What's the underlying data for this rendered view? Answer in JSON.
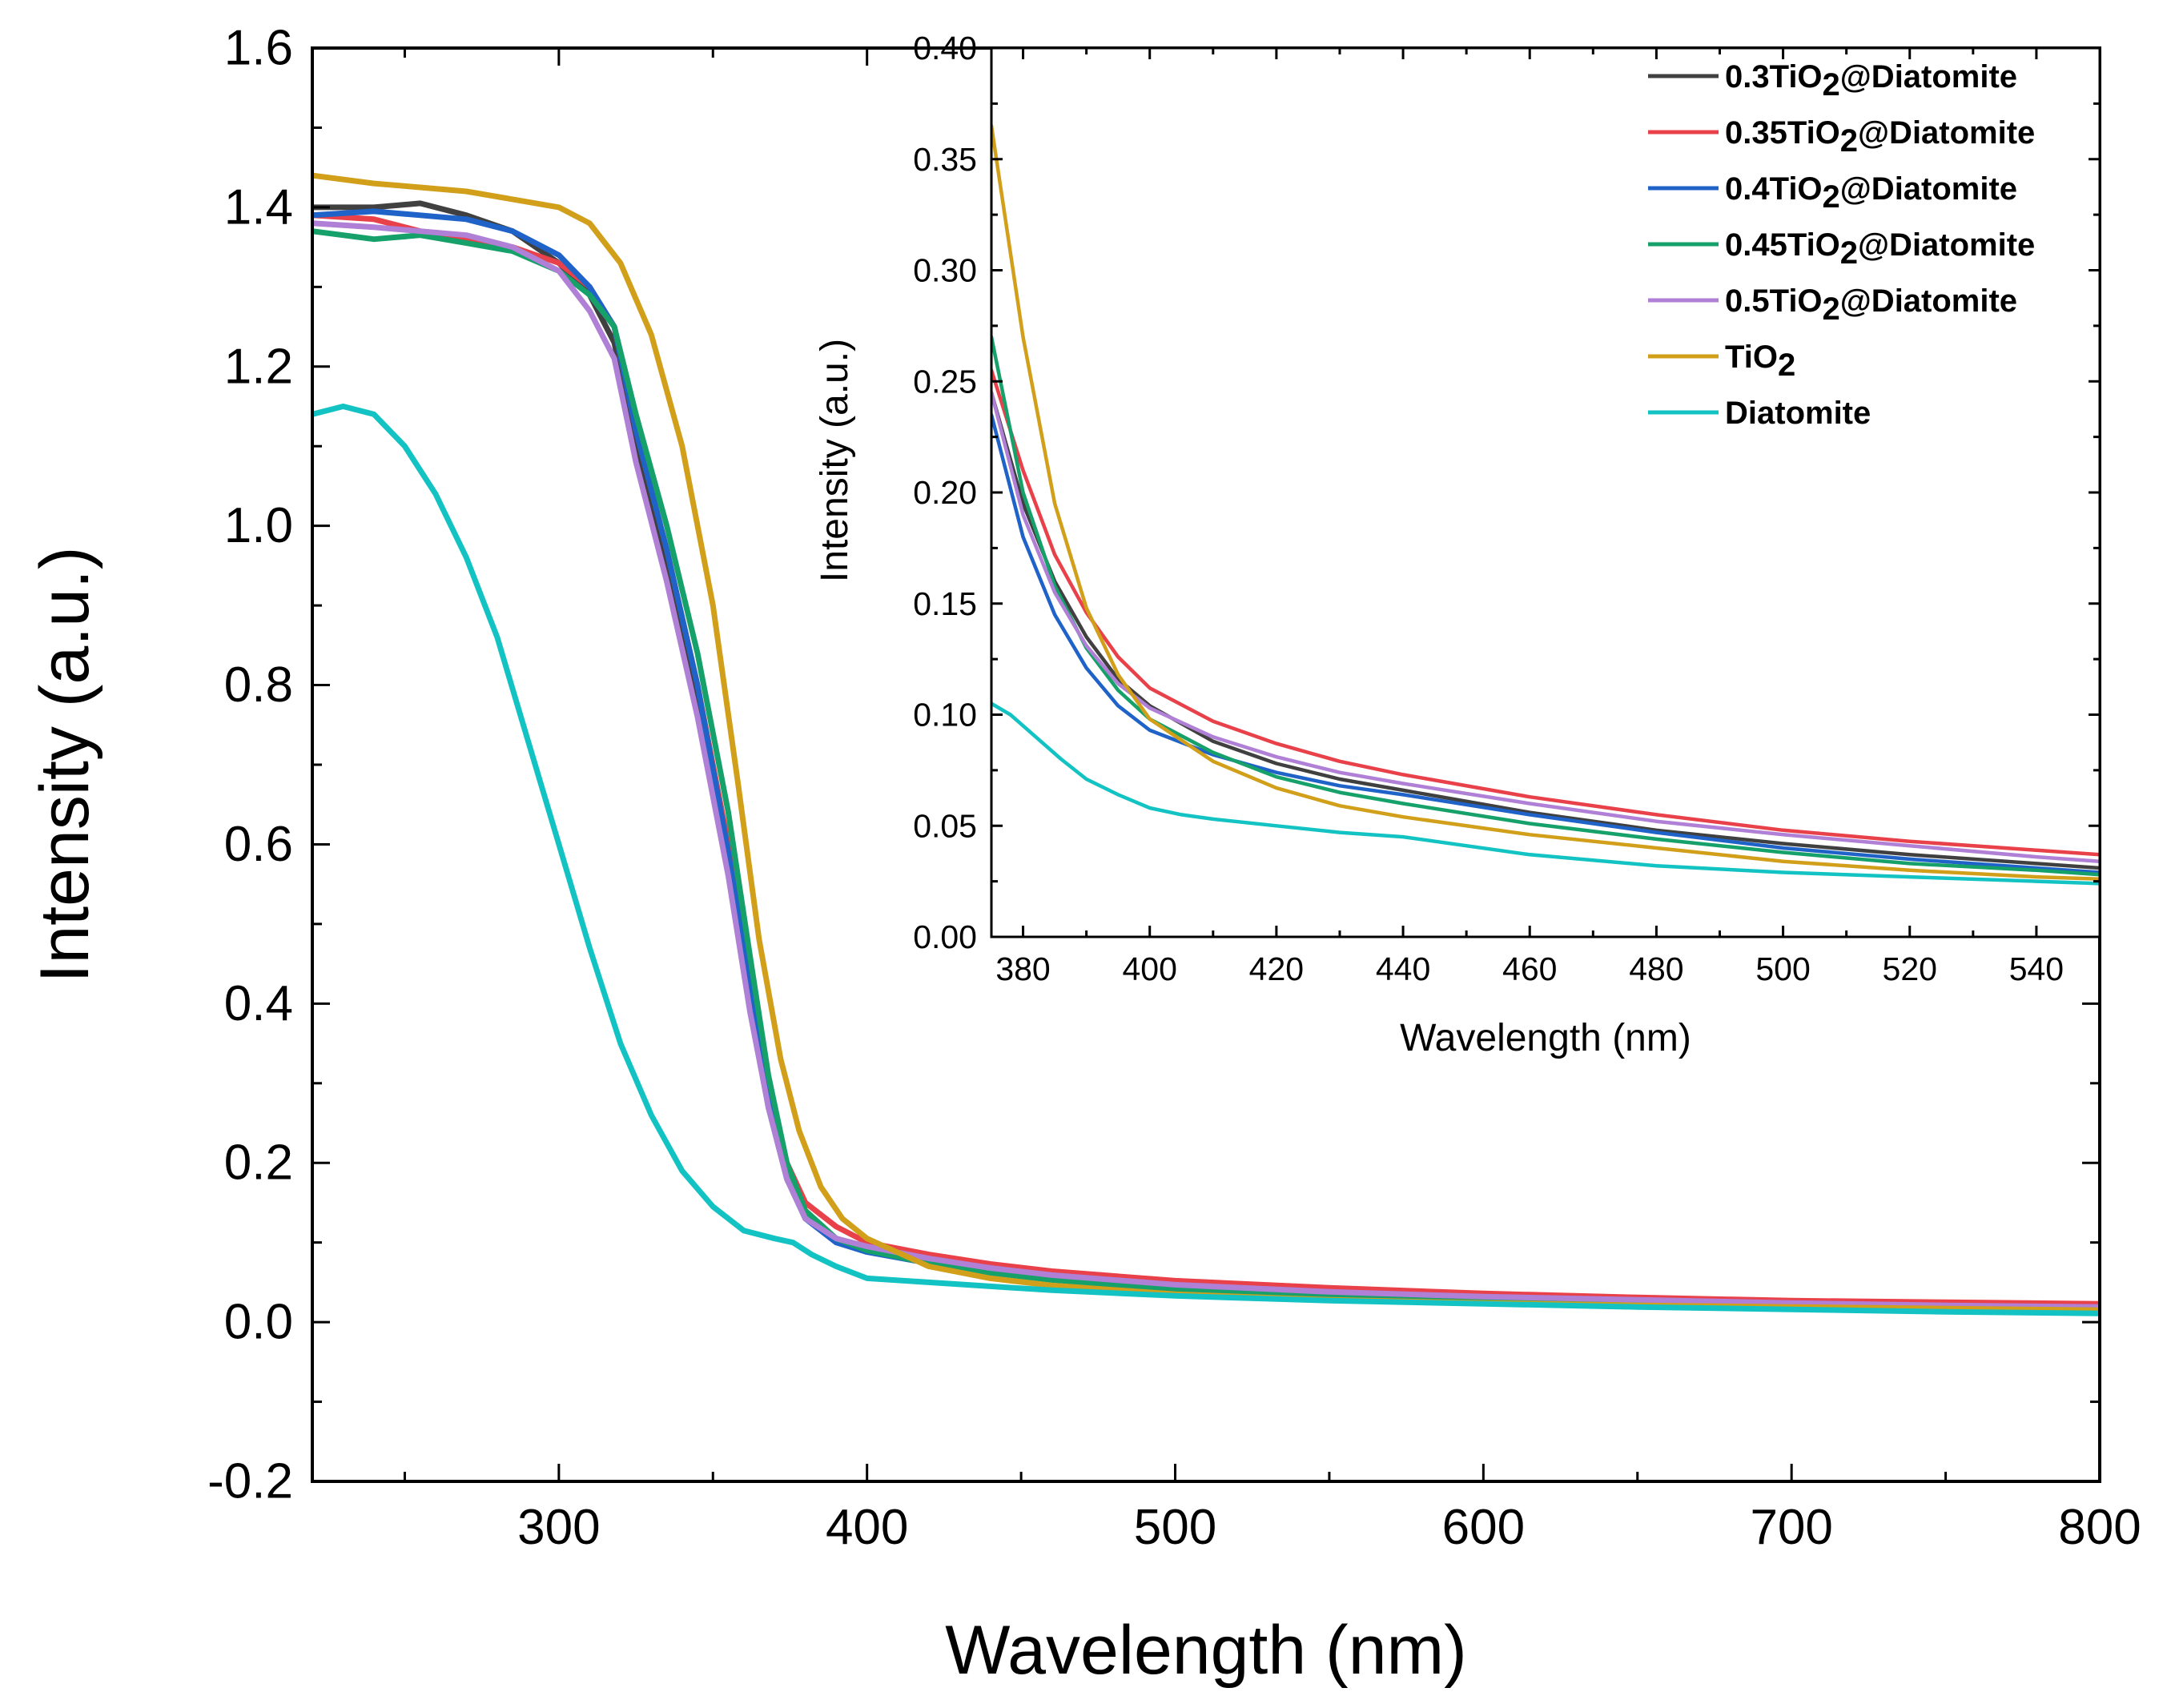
{
  "chart_data": [
    {
      "type": "line",
      "panel": "main",
      "xlabel": "Wavelength (nm)",
      "ylabel": "Intensity (a.u.)",
      "xlim": [
        220,
        800
      ],
      "ylim": [
        -0.2,
        1.6
      ],
      "xticks": [
        300,
        400,
        500,
        600,
        700,
        800
      ],
      "xtick_labels": [
        "300",
        "400",
        "500",
        "600",
        "700",
        "800"
      ],
      "yticks": [
        -0.2,
        0.0,
        0.2,
        0.4,
        0.6,
        0.8,
        1.0,
        1.2,
        1.4,
        1.6
      ],
      "ytick_labels": [
        "-0.2",
        "0.0",
        "0.2",
        "0.4",
        "0.6",
        "0.8",
        "1.0",
        "1.2",
        "1.4",
        "1.6"
      ],
      "series": [
        {
          "name": "0.3TiO2@Diatomite",
          "color": "#404040",
          "x": [
            220,
            240,
            255,
            270,
            285,
            300,
            310,
            318,
            325,
            335,
            345,
            355,
            362,
            368,
            374,
            380,
            390,
            400,
            420,
            440,
            460,
            500,
            550,
            600,
            650,
            700,
            750,
            800
          ],
          "y": [
            1.4,
            1.4,
            1.405,
            1.39,
            1.37,
            1.33,
            1.29,
            1.23,
            1.1,
            0.95,
            0.78,
            0.57,
            0.4,
            0.27,
            0.18,
            0.13,
            0.105,
            0.093,
            0.075,
            0.063,
            0.055,
            0.043,
            0.035,
            0.028,
            0.024,
            0.02,
            0.016,
            0.013
          ]
        },
        {
          "name": "0.35TiO2@Diatomite",
          "color": "#e8414a",
          "x": [
            220,
            240,
            255,
            270,
            285,
            300,
            310,
            318,
            325,
            335,
            345,
            355,
            362,
            368,
            374,
            380,
            390,
            400,
            420,
            440,
            460,
            500,
            550,
            600,
            650,
            700,
            750,
            800
          ],
          "y": [
            1.39,
            1.385,
            1.37,
            1.36,
            1.35,
            1.33,
            1.3,
            1.25,
            1.12,
            0.97,
            0.8,
            0.6,
            0.43,
            0.29,
            0.2,
            0.15,
            0.12,
            0.1,
            0.085,
            0.073,
            0.064,
            0.052,
            0.043,
            0.036,
            0.031,
            0.027,
            0.025,
            0.023
          ]
        },
        {
          "name": "0.4TiO2@Diatomite",
          "color": "#1f63c9",
          "x": [
            220,
            240,
            255,
            270,
            285,
            300,
            310,
            318,
            325,
            335,
            345,
            355,
            362,
            368,
            374,
            380,
            390,
            400,
            420,
            440,
            460,
            500,
            550,
            600,
            650,
            700,
            750,
            800
          ],
          "y": [
            1.39,
            1.395,
            1.39,
            1.385,
            1.37,
            1.34,
            1.3,
            1.25,
            1.12,
            0.97,
            0.8,
            0.59,
            0.42,
            0.28,
            0.18,
            0.13,
            0.1,
            0.088,
            0.074,
            0.063,
            0.055,
            0.043,
            0.034,
            0.028,
            0.023,
            0.019,
            0.016,
            0.014
          ]
        },
        {
          "name": "0.45TiO2@Diatomite",
          "color": "#16a06a",
          "x": [
            220,
            240,
            255,
            270,
            285,
            300,
            310,
            318,
            325,
            335,
            345,
            355,
            362,
            368,
            374,
            380,
            390,
            400,
            420,
            440,
            460,
            500,
            550,
            600,
            650,
            700,
            750,
            800
          ],
          "y": [
            1.37,
            1.36,
            1.365,
            1.355,
            1.345,
            1.32,
            1.29,
            1.25,
            1.14,
            1.0,
            0.84,
            0.64,
            0.46,
            0.31,
            0.2,
            0.14,
            0.105,
            0.09,
            0.074,
            0.062,
            0.053,
            0.041,
            0.033,
            0.027,
            0.023,
            0.02,
            0.018,
            0.016
          ]
        },
        {
          "name": "0.5TiO2@Diatomite",
          "color": "#b07fd6",
          "x": [
            220,
            240,
            255,
            270,
            285,
            300,
            310,
            318,
            325,
            335,
            345,
            355,
            362,
            368,
            374,
            380,
            390,
            400,
            420,
            440,
            460,
            500,
            550,
            600,
            650,
            700,
            750,
            800
          ],
          "y": [
            1.38,
            1.375,
            1.37,
            1.365,
            1.35,
            1.32,
            1.27,
            1.21,
            1.08,
            0.93,
            0.76,
            0.56,
            0.39,
            0.27,
            0.18,
            0.13,
            0.105,
            0.095,
            0.08,
            0.068,
            0.059,
            0.047,
            0.038,
            0.032,
            0.028,
            0.024,
            0.021,
            0.019
          ]
        },
        {
          "name": "TiO2",
          "color": "#d19f1a",
          "x": [
            220,
            240,
            255,
            270,
            285,
            300,
            310,
            320,
            330,
            340,
            350,
            358,
            365,
            372,
            378,
            385,
            392,
            400,
            420,
            440,
            460,
            500,
            550,
            600,
            650,
            700,
            750,
            800
          ],
          "y": [
            1.44,
            1.43,
            1.425,
            1.42,
            1.41,
            1.4,
            1.38,
            1.33,
            1.24,
            1.1,
            0.9,
            0.68,
            0.48,
            0.33,
            0.24,
            0.17,
            0.13,
            0.105,
            0.07,
            0.055,
            0.046,
            0.035,
            0.028,
            0.024,
            0.021,
            0.019,
            0.017,
            0.015
          ]
        },
        {
          "name": "Diatomite",
          "color": "#13c3c3",
          "x": [
            220,
            230,
            240,
            250,
            260,
            270,
            280,
            290,
            300,
            310,
            320,
            330,
            340,
            350,
            360,
            370,
            376,
            382,
            390,
            400,
            420,
            440,
            460,
            500,
            550,
            600,
            650,
            700,
            750,
            800
          ],
          "y": [
            1.14,
            1.15,
            1.14,
            1.1,
            1.04,
            0.96,
            0.86,
            0.73,
            0.6,
            0.47,
            0.35,
            0.26,
            0.19,
            0.145,
            0.115,
            0.105,
            0.1,
            0.085,
            0.07,
            0.055,
            0.05,
            0.045,
            0.04,
            0.033,
            0.027,
            0.023,
            0.019,
            0.016,
            0.013,
            0.011
          ]
        }
      ]
    },
    {
      "type": "line",
      "panel": "inset",
      "xlabel": "Wavelength (nm)",
      "ylabel": "Intensity (a.u.)",
      "xlim": [
        375,
        550
      ],
      "ylim": [
        0.0,
        0.4
      ],
      "xticks": [
        380,
        400,
        420,
        440,
        460,
        480,
        500,
        520,
        540
      ],
      "xtick_labels": [
        "380",
        "400",
        "420",
        "440",
        "460",
        "480",
        "500",
        "520",
        "540"
      ],
      "yticks": [
        0.0,
        0.05,
        0.1,
        0.15,
        0.2,
        0.25,
        0.3,
        0.35,
        0.4
      ],
      "ytick_labels": [
        "0.00",
        "0.05",
        "0.10",
        "0.15",
        "0.20",
        "0.25",
        "0.30",
        "0.35",
        "0.40"
      ],
      "series": [
        {
          "name": "0.3TiO2@Diatomite",
          "color": "#404040",
          "x": [
            375,
            380,
            385,
            390,
            395,
            400,
            410,
            420,
            430,
            440,
            460,
            480,
            500,
            520,
            540,
            550
          ],
          "y": [
            0.245,
            0.195,
            0.16,
            0.135,
            0.116,
            0.104,
            0.088,
            0.078,
            0.071,
            0.066,
            0.056,
            0.048,
            0.042,
            0.037,
            0.033,
            0.031
          ]
        },
        {
          "name": "0.35TiO2@Diatomite",
          "color": "#e8414a",
          "x": [
            375,
            380,
            385,
            390,
            395,
            400,
            410,
            420,
            430,
            440,
            460,
            480,
            500,
            520,
            540,
            550
          ],
          "y": [
            0.255,
            0.21,
            0.172,
            0.146,
            0.126,
            0.112,
            0.097,
            0.087,
            0.079,
            0.073,
            0.063,
            0.055,
            0.048,
            0.043,
            0.039,
            0.037
          ]
        },
        {
          "name": "0.4TiO2@Diatomite",
          "color": "#1f63c9",
          "x": [
            375,
            380,
            385,
            390,
            395,
            400,
            410,
            420,
            430,
            440,
            460,
            480,
            500,
            520,
            540,
            550
          ],
          "y": [
            0.235,
            0.18,
            0.145,
            0.121,
            0.104,
            0.093,
            0.082,
            0.074,
            0.068,
            0.064,
            0.055,
            0.047,
            0.04,
            0.035,
            0.031,
            0.029
          ]
        },
        {
          "name": "0.45TiO2@Diatomite",
          "color": "#16a06a",
          "x": [
            375,
            380,
            385,
            390,
            395,
            400,
            410,
            420,
            430,
            440,
            460,
            480,
            500,
            520,
            540,
            550
          ],
          "y": [
            0.27,
            0.2,
            0.158,
            0.13,
            0.111,
            0.098,
            0.083,
            0.072,
            0.065,
            0.06,
            0.051,
            0.044,
            0.038,
            0.033,
            0.03,
            0.028
          ]
        },
        {
          "name": "0.5TiO2@Diatomite",
          "color": "#b07fd6",
          "x": [
            375,
            380,
            385,
            390,
            395,
            400,
            410,
            420,
            430,
            440,
            460,
            480,
            500,
            520,
            540,
            550
          ],
          "y": [
            0.245,
            0.19,
            0.155,
            0.131,
            0.114,
            0.103,
            0.09,
            0.081,
            0.074,
            0.069,
            0.06,
            0.052,
            0.046,
            0.041,
            0.036,
            0.034
          ]
        },
        {
          "name": "TiO2",
          "color": "#d19f1a",
          "x": [
            375,
            380,
            385,
            390,
            395,
            400,
            410,
            420,
            430,
            440,
            460,
            480,
            500,
            520,
            540,
            550
          ],
          "y": [
            0.365,
            0.27,
            0.195,
            0.148,
            0.118,
            0.098,
            0.079,
            0.067,
            0.059,
            0.054,
            0.046,
            0.04,
            0.034,
            0.03,
            0.027,
            0.026
          ]
        },
        {
          "name": "Diatomite",
          "color": "#13c3c3",
          "x": [
            375,
            378,
            382,
            386,
            390,
            395,
            400,
            405,
            410,
            420,
            430,
            440,
            460,
            480,
            500,
            520,
            540,
            550
          ],
          "y": [
            0.105,
            0.1,
            0.09,
            0.08,
            0.071,
            0.064,
            0.058,
            0.055,
            0.053,
            0.05,
            0.047,
            0.045,
            0.037,
            0.032,
            0.029,
            0.027,
            0.025,
            0.024
          ]
        }
      ]
    }
  ],
  "legend": {
    "entries": [
      {
        "prefix": "0.3TiO",
        "sub": "2",
        "suffix": "@Diatomite",
        "color": "#404040"
      },
      {
        "prefix": "0.35TiO",
        "sub": "2",
        "suffix": "@Diatomite",
        "color": "#e8414a"
      },
      {
        "prefix": "0.4TiO",
        "sub": "2",
        "suffix": "@Diatomite",
        "color": "#1f63c9"
      },
      {
        "prefix": "0.45TiO",
        "sub": "2",
        "suffix": "@Diatomite",
        "color": "#16a06a"
      },
      {
        "prefix": "0.5TiO",
        "sub": "2",
        "suffix": "@Diatomite",
        "color": "#b07fd6"
      },
      {
        "prefix": "TiO",
        "sub": "2",
        "suffix": "",
        "color": "#d19f1a"
      },
      {
        "prefix": "Diatomite",
        "sub": "",
        "suffix": "",
        "color": "#13c3c3"
      }
    ]
  }
}
